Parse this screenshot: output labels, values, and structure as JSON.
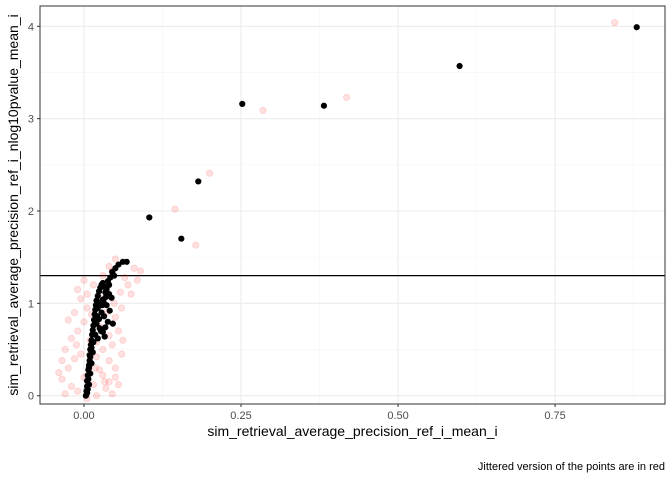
{
  "chart_data": {
    "type": "scatter",
    "title": "",
    "xlabel": "sim_retrieval_average_precision_ref_i_mean_i",
    "ylabel": "sim_retrieval_average_precision_ref_i_nlog10pvalue_mean_i",
    "caption": "Jittered version of the points are in red",
    "xlim": [
      -0.07,
      0.925
    ],
    "ylim": [
      -0.09,
      4.22
    ],
    "grid": true,
    "x_ticks": [
      0.0,
      0.25,
      0.5,
      0.75
    ],
    "x_tick_labels": [
      "0.00",
      "0.25",
      "0.50",
      "0.75"
    ],
    "y_ticks": [
      0,
      1,
      2,
      3,
      4
    ],
    "y_tick_labels": [
      "0",
      "1",
      "2",
      "3",
      "4"
    ],
    "hline": 1.3,
    "colors": {
      "points": "#000000",
      "jitter": "#ff0000",
      "hline": "#000000",
      "grid_major": "#ebebeb",
      "grid_minor": "#f5f5f5",
      "panel_border": "#333333"
    },
    "series": [
      {
        "points": [
          [
            0.003,
            0.0
          ],
          [
            0.004,
            0.05
          ],
          [
            0.005,
            0.1
          ],
          [
            0.005,
            0.16
          ],
          [
            0.006,
            0.22
          ],
          [
            0.007,
            0.28
          ],
          [
            0.008,
            0.33
          ],
          [
            0.009,
            0.38
          ],
          [
            0.009,
            0.44
          ],
          [
            0.01,
            0.5
          ],
          [
            0.011,
            0.55
          ],
          [
            0.012,
            0.6
          ],
          [
            0.013,
            0.66
          ],
          [
            0.014,
            0.71
          ],
          [
            0.015,
            0.76
          ],
          [
            0.016,
            0.82
          ],
          [
            0.017,
            0.88
          ],
          [
            0.018,
            0.93
          ],
          [
            0.019,
            0.98
          ],
          [
            0.02,
            1.03
          ],
          [
            0.022,
            1.08
          ],
          [
            0.024,
            1.13
          ],
          [
            0.026,
            1.17
          ],
          [
            0.028,
            1.2
          ],
          [
            0.03,
            1.22
          ],
          [
            0.032,
            1.18
          ],
          [
            0.034,
            1.12
          ],
          [
            0.035,
            1.07
          ],
          [
            0.03,
            1.04
          ],
          [
            0.026,
            1.0
          ],
          [
            0.022,
            0.95
          ],
          [
            0.028,
            0.9
          ],
          [
            0.032,
            0.86
          ],
          [
            0.024,
            0.83
          ],
          [
            0.02,
            0.78
          ],
          [
            0.025,
            0.73
          ],
          [
            0.03,
            0.69
          ],
          [
            0.018,
            0.66
          ],
          [
            0.022,
            0.62
          ],
          [
            0.015,
            0.58
          ],
          [
            0.012,
            0.52
          ],
          [
            0.014,
            0.47
          ],
          [
            0.01,
            0.42
          ],
          [
            0.012,
            0.35
          ],
          [
            0.008,
            0.3
          ],
          [
            0.01,
            0.24
          ],
          [
            0.007,
            0.18
          ],
          [
            0.008,
            0.12
          ],
          [
            0.006,
            0.07
          ],
          [
            0.005,
            0.03
          ],
          [
            0.038,
            1.24
          ],
          [
            0.042,
            1.28
          ],
          [
            0.045,
            1.34
          ],
          [
            0.05,
            1.38
          ],
          [
            0.048,
            1.3
          ],
          [
            0.055,
            1.42
          ],
          [
            0.062,
            1.45
          ],
          [
            0.068,
            1.45
          ],
          [
            0.04,
            1.2
          ],
          [
            0.036,
            1.15
          ],
          [
            0.04,
            1.1
          ],
          [
            0.044,
            1.06
          ],
          [
            0.036,
            0.98
          ],
          [
            0.041,
            0.92
          ],
          [
            0.038,
            0.8
          ],
          [
            0.034,
            0.74
          ],
          [
            0.046,
            0.78
          ],
          [
            0.027,
            0.7
          ],
          [
            0.033,
            0.64
          ],
          [
            0.029,
            0.98
          ],
          [
            0.031,
            1.02
          ],
          [
            0.021,
            0.86
          ],
          [
            0.104,
            1.93
          ],
          [
            0.155,
            1.7
          ],
          [
            0.182,
            2.32
          ],
          [
            0.252,
            3.16
          ],
          [
            0.382,
            3.14
          ],
          [
            0.598,
            3.57
          ],
          [
            0.88,
            3.99
          ]
        ]
      },
      {
        "name": "Jittered",
        "points": [
          [
            -0.03,
            0.02
          ],
          [
            -0.02,
            0.1
          ],
          [
            -0.035,
            0.18
          ],
          [
            -0.01,
            0.05
          ],
          [
            0.005,
            -0.03
          ],
          [
            0.02,
            0.0
          ],
          [
            0.035,
            0.08
          ],
          [
            0.045,
            0.02
          ],
          [
            0.04,
            0.15
          ],
          [
            0.03,
            0.22
          ],
          [
            -0.025,
            0.3
          ],
          [
            -0.015,
            0.4
          ],
          [
            -0.03,
            0.5
          ],
          [
            -0.005,
            0.45
          ],
          [
            0.01,
            0.35
          ],
          [
            0.025,
            0.28
          ],
          [
            0.04,
            0.38
          ],
          [
            0.05,
            0.3
          ],
          [
            0.055,
            0.12
          ],
          [
            0.015,
            0.12
          ],
          [
            -0.02,
            0.62
          ],
          [
            -0.01,
            0.7
          ],
          [
            0.0,
            0.8
          ],
          [
            -0.015,
            0.9
          ],
          [
            0.005,
            0.95
          ],
          [
            0.03,
            0.5
          ],
          [
            0.045,
            0.55
          ],
          [
            0.06,
            0.45
          ],
          [
            0.02,
            0.58
          ],
          [
            0.04,
            0.65
          ],
          [
            -0.005,
            1.05
          ],
          [
            0.005,
            1.1
          ],
          [
            0.015,
            1.2
          ],
          [
            0.0,
            1.25
          ],
          [
            -0.01,
            1.15
          ],
          [
            0.025,
            0.75
          ],
          [
            0.05,
            0.85
          ],
          [
            0.06,
            0.95
          ],
          [
            0.035,
            0.9
          ],
          [
            0.055,
            0.7
          ],
          [
            0.03,
            1.3
          ],
          [
            0.04,
            1.4
          ],
          [
            0.05,
            1.48
          ],
          [
            0.045,
            1.35
          ],
          [
            0.065,
            1.28
          ],
          [
            0.07,
            1.2
          ],
          [
            0.075,
            1.1
          ],
          [
            0.08,
            1.38
          ],
          [
            0.09,
            1.35
          ],
          [
            0.085,
            1.25
          ],
          [
            -0.035,
            0.38
          ],
          [
            -0.04,
            0.25
          ],
          [
            0.01,
            0.6
          ],
          [
            0.0,
            0.2
          ],
          [
            0.02,
            0.42
          ],
          [
            -0.025,
            0.82
          ],
          [
            0.012,
            0.88
          ],
          [
            0.028,
            1.05
          ],
          [
            0.048,
            1.0
          ],
          [
            0.058,
            1.12
          ],
          [
            0.018,
            0.3
          ],
          [
            0.033,
            0.15
          ],
          [
            0.05,
            0.2
          ],
          [
            -0.012,
            0.55
          ],
          [
            0.062,
            0.6
          ],
          [
            0.145,
            2.02
          ],
          [
            0.178,
            1.63
          ],
          [
            0.2,
            2.41
          ],
          [
            0.285,
            3.09
          ],
          [
            0.418,
            3.23
          ],
          [
            0.845,
            4.04
          ]
        ]
      }
    ]
  }
}
